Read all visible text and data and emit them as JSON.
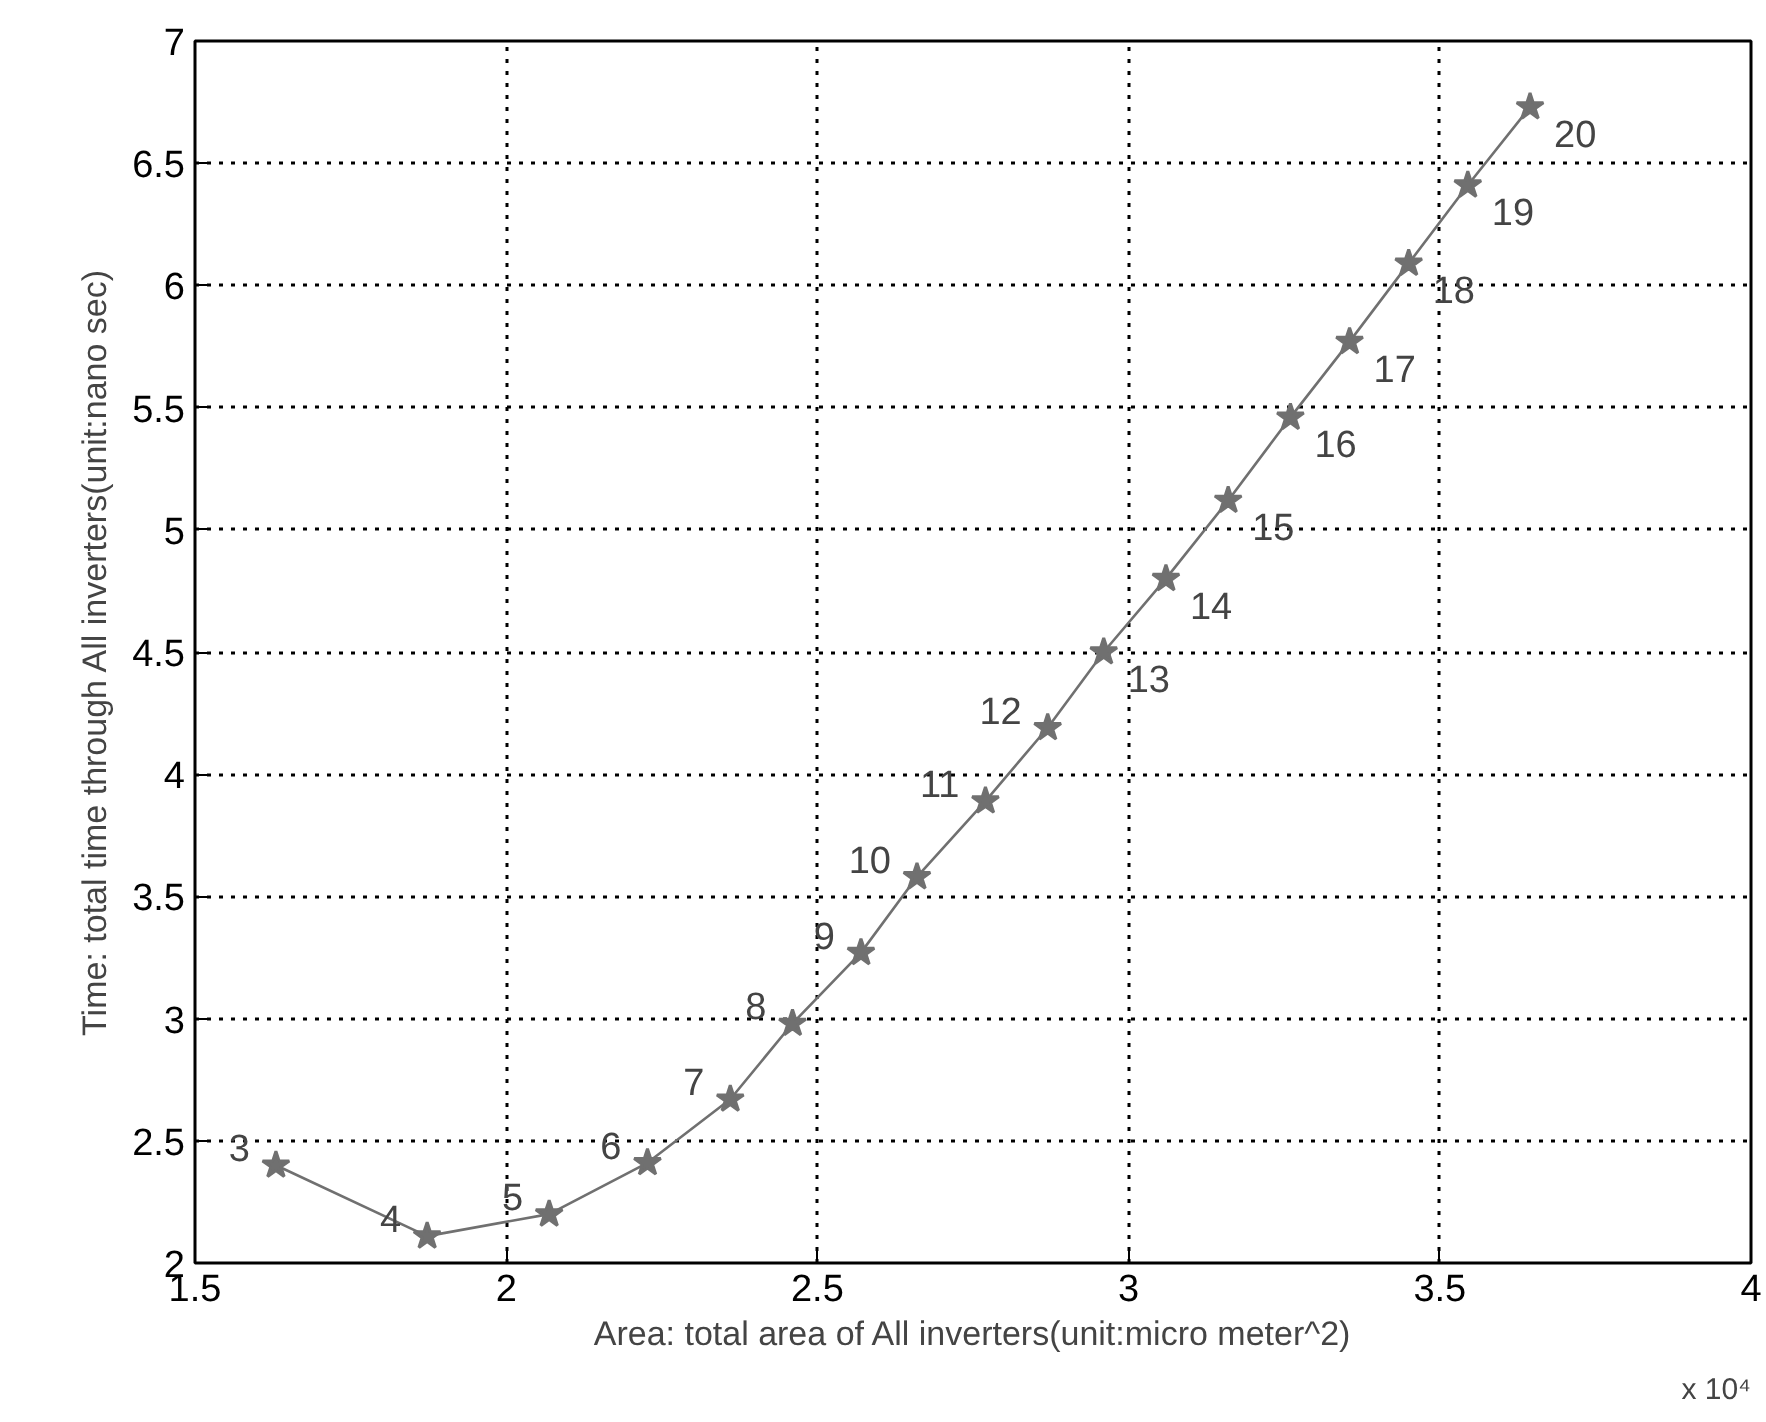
{
  "chart_data": {
    "type": "line",
    "xlabel": "Area: total area of All inverters(unit:micro meter^2)",
    "ylabel": "Time: total time through All inverters(unit:nano sec)",
    "x": [
      1.63,
      1.873,
      2.069,
      2.227,
      2.36,
      2.46,
      2.57,
      2.66,
      2.77,
      2.87,
      2.96,
      3.06,
      3.16,
      3.26,
      3.355,
      3.45,
      3.545,
      3.645
    ],
    "series": [
      {
        "color": "#707070",
        "values": [
          2.4,
          2.11,
          2.2,
          2.41,
          2.67,
          2.98,
          3.27,
          3.58,
          3.89,
          4.19,
          4.5,
          4.8,
          5.12,
          5.46,
          5.77,
          6.09,
          6.41,
          6.73
        ]
      }
    ],
    "xlim": [
      1.5,
      4
    ],
    "ylim": [
      2,
      7
    ],
    "xticks": [
      1.5,
      2,
      2.5,
      3,
      3.5,
      4
    ],
    "yticks": [
      2,
      2.5,
      3,
      3.5,
      4,
      4.5,
      5,
      5.5,
      6,
      6.5,
      7
    ],
    "grid": true,
    "marker": "star",
    "line_style": "solid",
    "annotations": [
      {
        "text": "3",
        "x": 1.63,
        "y": 2.4
      },
      {
        "text": "4",
        "x": 1.873,
        "y": 2.11
      },
      {
        "text": "5",
        "x": 2.069,
        "y": 2.2
      },
      {
        "text": "6",
        "x": 2.227,
        "y": 2.41
      },
      {
        "text": "7",
        "x": 2.36,
        "y": 2.67
      },
      {
        "text": "8",
        "x": 2.46,
        "y": 2.98
      },
      {
        "text": "9",
        "x": 2.57,
        "y": 3.27
      },
      {
        "text": "10",
        "x": 2.66,
        "y": 3.58
      },
      {
        "text": "11",
        "x": 2.77,
        "y": 3.89
      },
      {
        "text": "12",
        "x": 2.87,
        "y": 4.19
      },
      {
        "text": "13",
        "x": 2.96,
        "y": 4.5
      },
      {
        "text": "14",
        "x": 3.06,
        "y": 4.8
      },
      {
        "text": "15",
        "x": 3.16,
        "y": 5.12
      },
      {
        "text": "16",
        "x": 3.26,
        "y": 5.46
      },
      {
        "text": "17",
        "x": 3.355,
        "y": 5.77
      },
      {
        "text": "18",
        "x": 3.45,
        "y": 6.09
      },
      {
        "text": "19",
        "x": 3.545,
        "y": 6.41
      },
      {
        "text": "20",
        "x": 3.645,
        "y": 6.73
      },
      "x 10⁴"
    ]
  }
}
